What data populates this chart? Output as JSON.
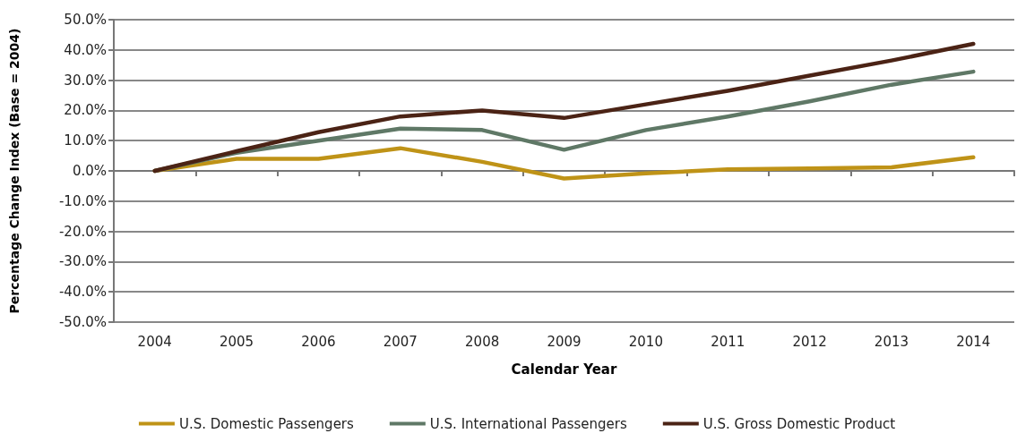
{
  "chart_data": {
    "type": "line",
    "xlabel": "Calendar Year",
    "ylabel": "Percentage Change Index (Base = 2004)",
    "categories": [
      "2004",
      "2005",
      "2006",
      "2007",
      "2008",
      "2009",
      "2010",
      "2011",
      "2012",
      "2013",
      "2014"
    ],
    "series": [
      {
        "name": "U.S. Domestic Passengers",
        "color": "#bf9317",
        "values": [
          0,
          4,
          4,
          7.5,
          3,
          -2.5,
          -0.8,
          0.5,
          0.8,
          1.2,
          4.5
        ]
      },
      {
        "name": "U.S. International Passengers",
        "color": "#5f7866",
        "values": [
          0,
          6,
          10,
          14,
          13.5,
          7,
          13.5,
          18,
          23,
          28.5,
          32.8
        ]
      },
      {
        "name": "U.S. Gross Domestic Product",
        "color": "#4b2315",
        "values": [
          0,
          6.5,
          12.8,
          18,
          20,
          17.5,
          22,
          26.5,
          31.5,
          36.5,
          42
        ]
      }
    ],
    "ylim": [
      -50,
      50
    ],
    "yticks": [
      {
        "value": -50,
        "label": "-50.0%"
      },
      {
        "value": -40,
        "label": "-40.0%"
      },
      {
        "value": -30,
        "label": "-30.0%"
      },
      {
        "value": -20,
        "label": "-20.0%"
      },
      {
        "value": -10,
        "label": "-10.0%"
      },
      {
        "value": 0,
        "label": "0.0%"
      },
      {
        "value": 10,
        "label": "10.0%"
      },
      {
        "value": 20,
        "label": "20.0%"
      },
      {
        "value": 30,
        "label": "30.0%"
      },
      {
        "value": 40,
        "label": "40.0%"
      },
      {
        "value": 50,
        "label": "50.0%"
      }
    ],
    "grid": "y",
    "legend": "bottom",
    "marker": "none",
    "line_style": "solid"
  }
}
